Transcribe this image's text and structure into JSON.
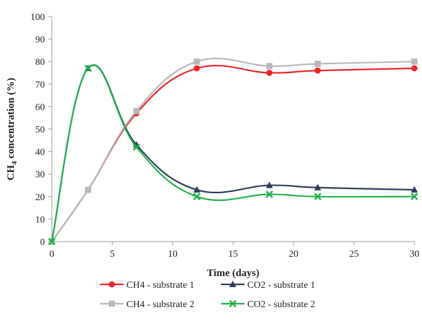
{
  "chart_data": {
    "type": "line",
    "xlabel": "Time (days)",
    "ylabel": "CH4 concentration (%)",
    "ylabel_main": "CH",
    "ylabel_sub": "4",
    "ylabel_rest": " concentration (%)",
    "xlim": [
      0,
      30
    ],
    "ylim": [
      0,
      100
    ],
    "xticks": [
      0,
      5,
      10,
      15,
      20,
      25,
      30
    ],
    "yticks": [
      0,
      10,
      20,
      30,
      40,
      50,
      60,
      70,
      80,
      90,
      100
    ],
    "grid": false,
    "legend_position": "bottom",
    "series": [
      {
        "name": "CH4 - substrate 1",
        "color": "#e8262a",
        "marker": "circle",
        "x": [
          0,
          3,
          7,
          12,
          18,
          22,
          30
        ],
        "y": [
          0,
          23,
          57,
          77,
          75,
          76,
          77
        ]
      },
      {
        "name": "CO2 - substrate 1",
        "color": "#2c3e5a",
        "marker": "triangle",
        "x": [
          0,
          3,
          7,
          12,
          18,
          22,
          30
        ],
        "y": [
          0,
          77,
          43,
          23,
          25,
          24,
          23
        ]
      },
      {
        "name": "CH4 - substrate 2",
        "color": "#b8b8b8",
        "marker": "square",
        "x": [
          0,
          3,
          7,
          12,
          18,
          22,
          30
        ],
        "y": [
          0,
          23,
          58,
          80,
          78,
          79,
          80
        ]
      },
      {
        "name": "CO2 - substrate 2",
        "color": "#22b24c",
        "marker": "x",
        "x": [
          0,
          3,
          7,
          12,
          18,
          22,
          30
        ],
        "y": [
          0,
          77,
          42,
          20,
          21,
          20,
          20
        ]
      }
    ]
  }
}
